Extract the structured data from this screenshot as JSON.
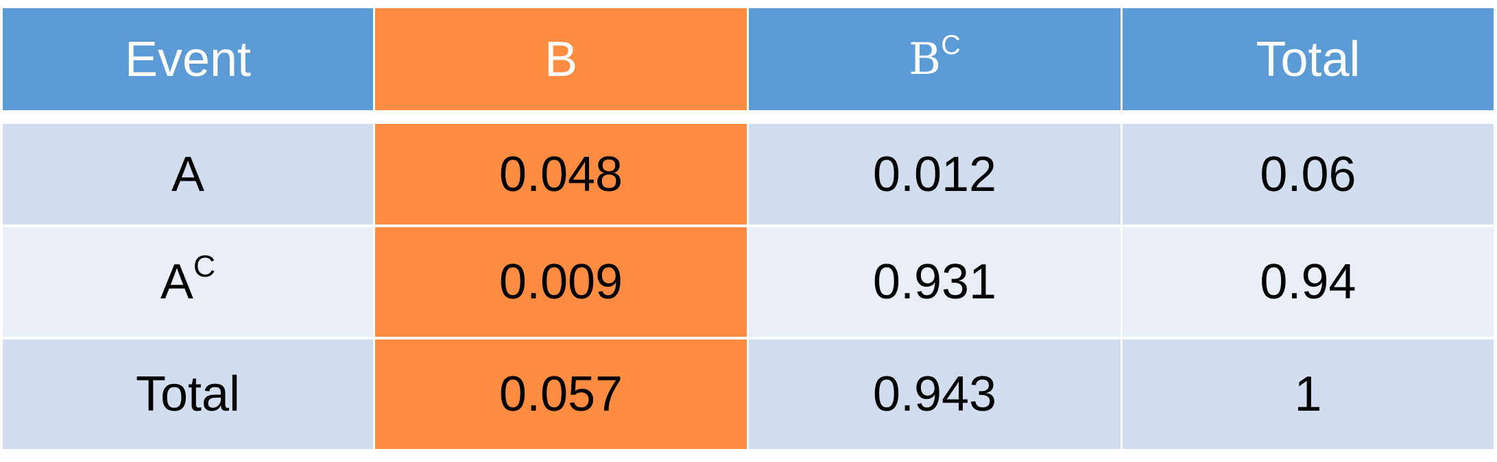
{
  "table": {
    "header": {
      "event": "Event",
      "b": "B",
      "bc_base": "B",
      "bc_sup": "C",
      "total": "Total"
    },
    "rows": [
      {
        "label_base": "A",
        "label_sup": "",
        "b": "0.048",
        "bc": "0.012",
        "total": "0.06"
      },
      {
        "label_base": "A",
        "label_sup": "C",
        "b": "0.009",
        "bc": "0.931",
        "total": "0.94"
      },
      {
        "label_base": "Total",
        "label_sup": "",
        "b": "0.057",
        "bc": "0.943",
        "total": "1"
      }
    ],
    "colors": {
      "header_blue": "#5b9bd5",
      "highlight_orange": "#ff8c40",
      "band_dark": "#d2deef",
      "band_light": "#eaeff7"
    }
  }
}
